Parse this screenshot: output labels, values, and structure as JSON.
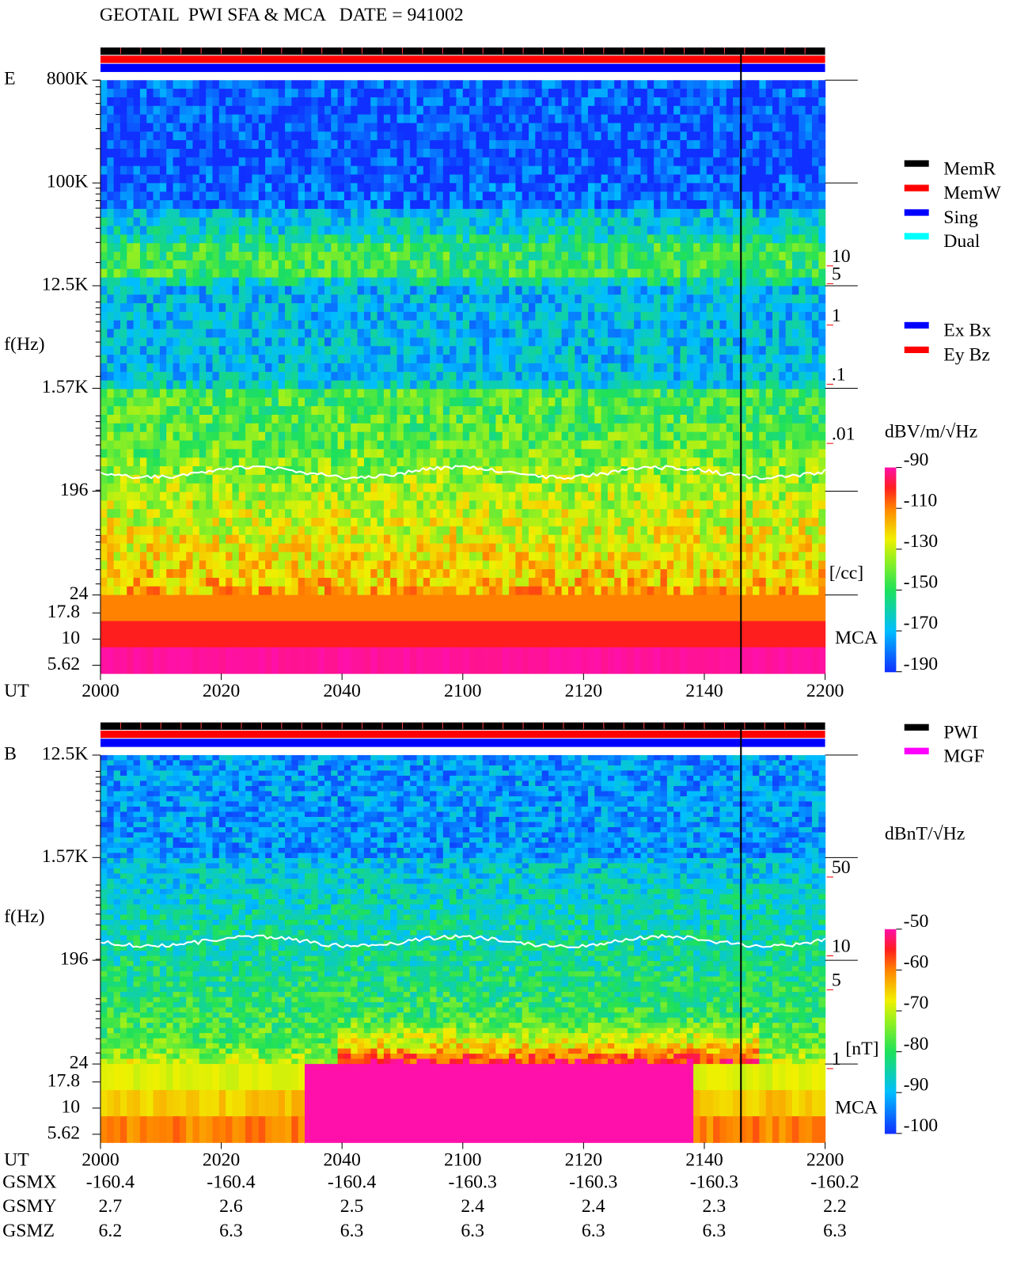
{
  "header": {
    "title": "GEOTAIL  PWI SFA & MCA   DATE = 941002"
  },
  "chart_data": [
    {
      "type": "spectrogram",
      "panel_label": "E",
      "y_label": "f(Hz)",
      "x_label": "UT",
      "categories": [
        "2000",
        "2020",
        "2040",
        "2100",
        "2120",
        "2140",
        "2200"
      ],
      "yscale": "log",
      "ylim": [
        24,
        800000
      ],
      "yticks": [
        {
          "value": 800000,
          "label": "800K"
        },
        {
          "value": 100000,
          "label": "100K"
        },
        {
          "value": 12500,
          "label": "12.5K"
        },
        {
          "value": 1570,
          "label": "1.57K"
        },
        196,
        24
      ],
      "mca_label": "MCA",
      "mca_ticks": [
        17.8,
        10,
        5.62
      ],
      "y2scale": "log",
      "y2lim": [
        2e-05,
        10000
      ],
      "y2_color": "#ff0000",
      "y2_label": "[/cc]",
      "y2ticks": [
        10,
        5,
        1,
        {
          "value": 0.1,
          "label": ".1"
        },
        {
          "value": 0.01,
          "label": ".01"
        }
      ],
      "colorbar": {
        "label": "dBV/m/√Hz",
        "zlim": [
          -190,
          -90
        ],
        "ticks": [
          -90,
          -110,
          -130,
          -150,
          -170,
          -190
        ]
      },
      "legend": [
        {
          "name": "MemR",
          "color": "#000000"
        },
        {
          "name": "MemW",
          "color": "#ff0000"
        },
        {
          "name": "Sing",
          "color": "#0000ff"
        },
        {
          "name": "Dual",
          "color": "#00ffff"
        },
        {
          "name": "Ex Bx",
          "color": "#0000ff"
        },
        {
          "name": "Ey Bz",
          "color": "#ff0000"
        }
      ]
    },
    {
      "type": "spectrogram",
      "panel_label": "B",
      "y_label": "f(Hz)",
      "x_label": "UT",
      "categories": [
        "2000",
        "2020",
        "2040",
        "2100",
        "2120",
        "2140",
        "2200"
      ],
      "yscale": "log",
      "ylim": [
        24,
        12500
      ],
      "yticks": [
        {
          "value": 12500,
          "label": "12.5K"
        },
        {
          "value": 1570,
          "label": "1.57K"
        },
        196,
        24
      ],
      "mca_label": "MCA",
      "mca_ticks": [
        17.8,
        10,
        5.62
      ],
      "y2scale": "log",
      "y2lim": [
        0.93,
        510
      ],
      "y2_color": "#ff0000",
      "y2_label": "[nT]",
      "y2ticks": [
        50,
        10,
        5,
        1
      ],
      "colorbar": {
        "label": "dBnT/√Hz",
        "zlim": [
          -100,
          -50
        ],
        "ticks": [
          -50,
          -60,
          -70,
          -80,
          -90,
          -100
        ]
      },
      "legend": [
        {
          "name": "PWI",
          "color": "#000000"
        },
        {
          "name": "MGF",
          "color": "#ff00ff"
        }
      ],
      "orbit": [
        {
          "name": "GSMX",
          "values": [
            -160.4,
            -160.4,
            -160.4,
            -160.3,
            -160.3,
            -160.3,
            -160.2
          ]
        },
        {
          "name": "GSMY",
          "values": [
            2.7,
            2.6,
            2.5,
            2.4,
            2.4,
            2.3,
            2.2
          ]
        },
        {
          "name": "GSMZ",
          "values": [
            6.2,
            6.3,
            6.3,
            6.3,
            6.3,
            6.3,
            6.3
          ]
        }
      ]
    }
  ]
}
